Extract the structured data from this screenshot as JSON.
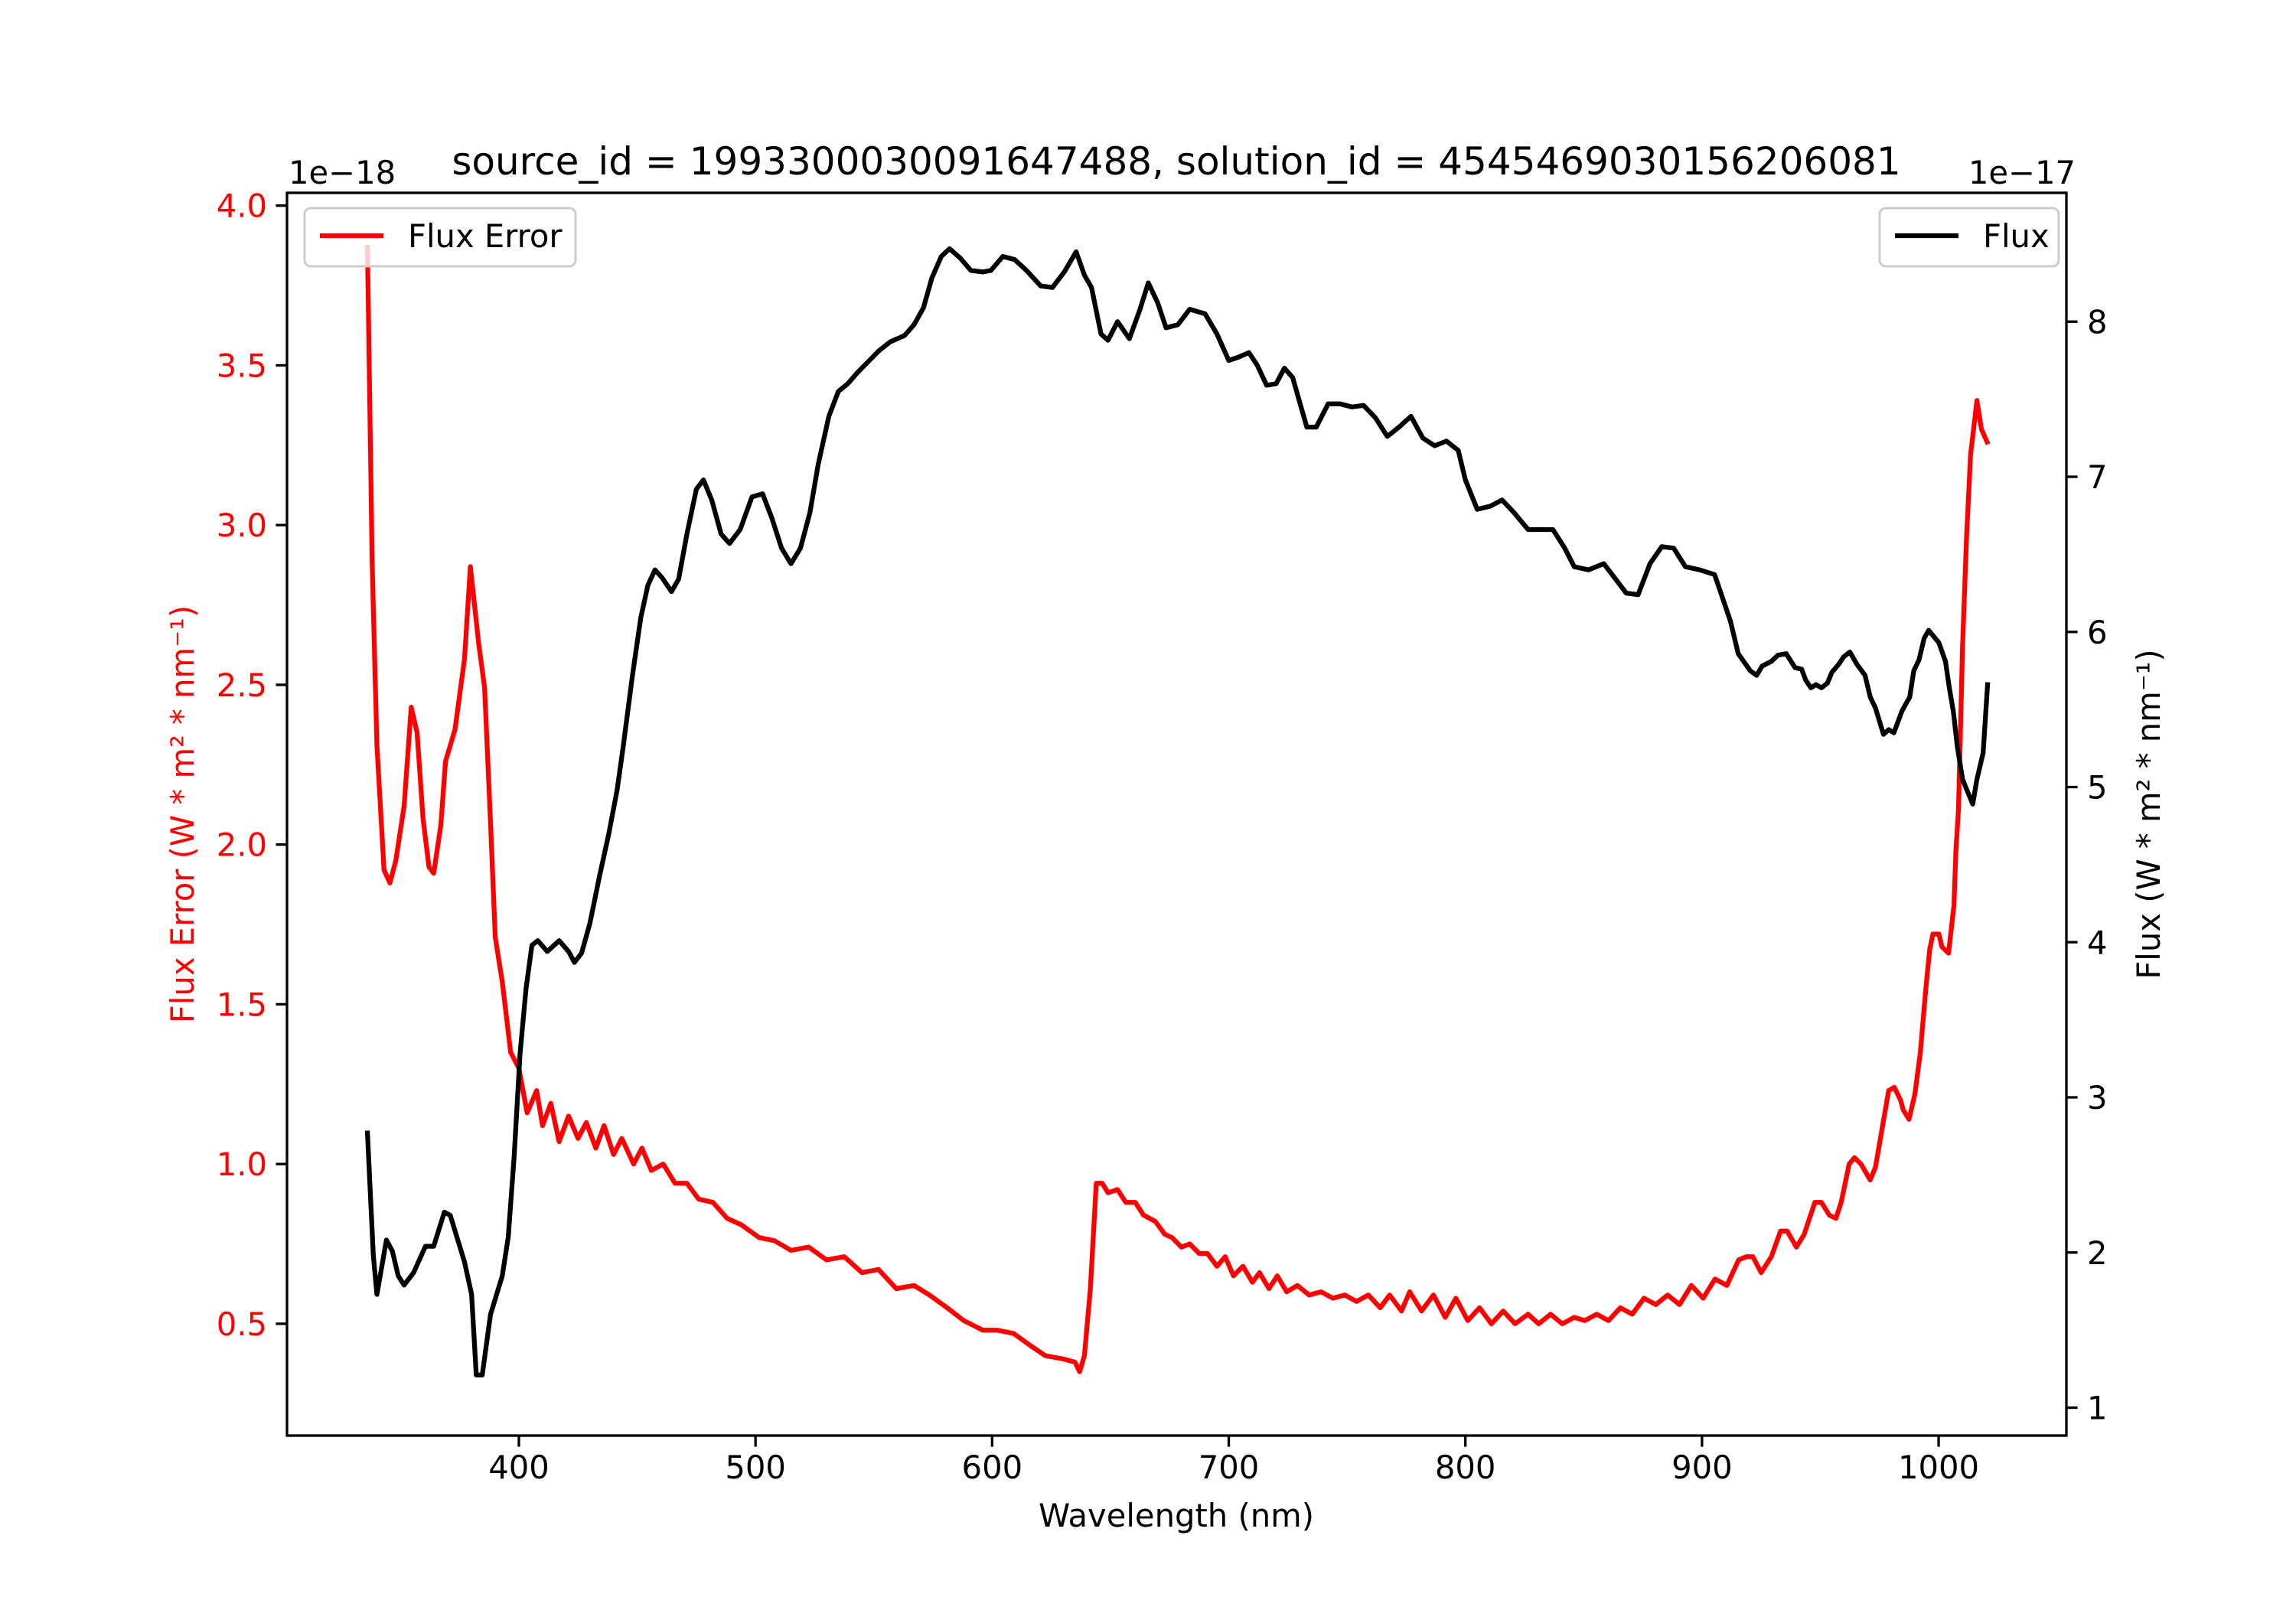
{
  "chart_data": {
    "type": "line",
    "title": "source_id = 1993300030091647488, solution_id = 4545469030156206081",
    "xlabel": "Wavelength (nm)",
    "ylabel_left": "Flux Error (W * m² * nm⁻¹)",
    "ylabel_right": "Flux (W * m² * nm⁻¹)",
    "offset_left": "1e−18",
    "offset_right": "1e−17",
    "xlim": [
      302,
      1054
    ],
    "ylim_left": [
      0.15,
      4.04
    ],
    "ylim_right": [
      0.82,
      8.83
    ],
    "x_ticks": [
      400,
      500,
      600,
      700,
      800,
      900,
      1000
    ],
    "x_tick_labels": [
      "400",
      "500",
      "600",
      "700",
      "800",
      "900",
      "1000"
    ],
    "y_left_ticks": [
      0.5,
      1.0,
      1.5,
      2.0,
      2.5,
      3.0,
      3.5,
      4.0
    ],
    "y_left_tick_labels": [
      "0.5",
      "1.0",
      "1.5",
      "2.0",
      "2.5",
      "3.0",
      "3.5",
      "4.0"
    ],
    "y_right_ticks": [
      1,
      2,
      3,
      4,
      5,
      6,
      7,
      8
    ],
    "y_right_tick_labels": [
      "1",
      "2",
      "3",
      "4",
      "5",
      "6",
      "7",
      "8"
    ],
    "grid": false,
    "colors": {
      "flux_error": "#ff0000",
      "flux": "#000000"
    },
    "legend": [
      {
        "name": "Flux Error",
        "placement": "upper-left",
        "color": "#ff0000"
      },
      {
        "name": "Flux",
        "placement": "upper-right",
        "color": "#000000"
      }
    ],
    "series": [
      {
        "name": "Flux Error",
        "axis": "left",
        "color": "#ff0000",
        "x": [
          336,
          338,
          340,
          343,
          345.5,
          348,
          351.5,
          354.5,
          357,
          359.5,
          362,
          364,
          367,
          369,
          373,
          377,
          379.5,
          383,
          385.5,
          388,
          390,
          393,
          396.5,
          400,
          403.5,
          407.5,
          410,
          413.5,
          417,
          421,
          425,
          428.5,
          432.5,
          436,
          440,
          443.5,
          448.5,
          452,
          456,
          461,
          466,
          471,
          476,
          482,
          488,
          494,
          501.5,
          508,
          515,
          522.5,
          530,
          537.5,
          545,
          552,
          559.5,
          567,
          573.5,
          581,
          588,
          596,
          602,
          609,
          616.5,
          622.5,
          630,
          635,
          637,
          639,
          641.5,
          644,
          646.5,
          649,
          653,
          656.5,
          660.5,
          664,
          669,
          673,
          676,
          680,
          683.5,
          687.5,
          691,
          695,
          698.5,
          702,
          706,
          710,
          713,
          717,
          720.5,
          724.5,
          729,
          734,
          739,
          744,
          749,
          754,
          759,
          764,
          768,
          773,
          776.5,
          781.5,
          786.5,
          791.5,
          796,
          801,
          806,
          811,
          816,
          821,
          826.5,
          831,
          836,
          841,
          846,
          850.5,
          855.5,
          860.5,
          865.5,
          870.5,
          875.5,
          880.5,
          885.5,
          890.5,
          895.5,
          900.5,
          905.5,
          910.5,
          915.5,
          918.7,
          921.5,
          925,
          929.3,
          933.2,
          936,
          939.9,
          943.2,
          947.7,
          950.5,
          953.8,
          956.6,
          958.8,
          962.2,
          964.4,
          967.2,
          971.1,
          973.3,
          978.9,
          981.3,
          983.9,
          985,
          987.5,
          990,
          992.3,
          994.5,
          996.2,
          997.6,
          1000.1,
          1001.4,
          1004.2,
          1006.5,
          1007.3,
          1008.4,
          1010.1,
          1011.8,
          1013.5,
          1016.2,
          1018.1,
          1020.5
        ],
        "y": [
          3.87,
          2.88,
          2.31,
          1.92,
          1.88,
          1.95,
          2.12,
          2.43,
          2.35,
          2.08,
          1.93,
          1.91,
          2.06,
          2.26,
          2.36,
          2.58,
          2.87,
          2.63,
          2.49,
          2.07,
          1.71,
          1.57,
          1.35,
          1.3,
          1.16,
          1.23,
          1.12,
          1.19,
          1.07,
          1.15,
          1.08,
          1.13,
          1.05,
          1.12,
          1.03,
          1.08,
          1.0,
          1.05,
          0.98,
          1.0,
          0.94,
          0.94,
          0.89,
          0.88,
          0.83,
          0.81,
          0.77,
          0.76,
          0.73,
          0.74,
          0.7,
          0.71,
          0.66,
          0.67,
          0.61,
          0.62,
          0.59,
          0.55,
          0.51,
          0.48,
          0.48,
          0.47,
          0.43,
          0.4,
          0.39,
          0.38,
          0.35,
          0.4,
          0.61,
          0.94,
          0.94,
          0.91,
          0.92,
          0.88,
          0.88,
          0.84,
          0.82,
          0.78,
          0.77,
          0.74,
          0.75,
          0.72,
          0.72,
          0.68,
          0.71,
          0.65,
          0.68,
          0.63,
          0.66,
          0.61,
          0.65,
          0.6,
          0.62,
          0.59,
          0.6,
          0.58,
          0.59,
          0.57,
          0.59,
          0.55,
          0.59,
          0.54,
          0.6,
          0.54,
          0.59,
          0.52,
          0.58,
          0.51,
          0.55,
          0.5,
          0.54,
          0.5,
          0.53,
          0.5,
          0.53,
          0.5,
          0.52,
          0.51,
          0.53,
          0.51,
          0.55,
          0.53,
          0.58,
          0.56,
          0.59,
          0.56,
          0.62,
          0.58,
          0.64,
          0.62,
          0.7,
          0.71,
          0.71,
          0.66,
          0.71,
          0.79,
          0.79,
          0.74,
          0.78,
          0.88,
          0.88,
          0.84,
          0.83,
          0.88,
          1.0,
          1.02,
          1.0,
          0.95,
          0.99,
          1.23,
          1.24,
          1.2,
          1.17,
          1.14,
          1.22,
          1.35,
          1.54,
          1.67,
          1.72,
          1.72,
          1.68,
          1.66,
          1.81,
          1.98,
          2.11,
          2.62,
          2.96,
          3.22,
          3.39,
          3.3,
          3.26
        ]
      },
      {
        "name": "Flux",
        "axis": "right",
        "color": "#000000",
        "x": [
          336,
          338.5,
          340,
          344,
          346.5,
          349,
          351.5,
          355.5,
          360.5,
          364,
          368.5,
          371,
          377,
          380,
          382,
          384.5,
          388,
          393,
          395.5,
          398,
          400.5,
          403,
          405.5,
          408,
          412,
          417,
          421,
          423.5,
          426.5,
          430,
          434,
          438,
          441.5,
          444,
          448,
          451.5,
          454.5,
          457.5,
          460.5,
          464.5,
          467.5,
          471,
          475,
          478,
          481.5,
          485.5,
          489,
          493.5,
          498.5,
          503,
          507,
          511,
          515,
          519,
          523,
          526.5,
          531,
          535,
          539,
          543,
          547.5,
          552,
          557,
          563,
          567,
          571,
          574.5,
          578.5,
          582,
          586.5,
          591,
          596,
          599.5,
          604.5,
          609.5,
          614.5,
          620.5,
          625.5,
          630.5,
          635.5,
          639,
          642,
          646,
          649,
          653,
          658,
          662.5,
          666,
          670,
          673.5,
          678.5,
          683.5,
          690,
          695,
          700,
          704,
          708.5,
          712,
          716,
          720,
          723.5,
          727,
          733,
          737,
          742,
          747,
          752,
          757,
          762,
          767,
          772,
          777,
          782,
          787,
          792,
          797,
          800,
          805,
          810.5,
          815.5,
          820.5,
          826.5,
          831,
          837,
          842,
          846,
          852,
          858.5,
          863,
          868,
          873,
          878,
          883,
          888,
          893,
          899,
          905.3,
          912,
          915.3,
          917.6,
          920.4,
          923.1,
          925.4,
          929.3,
          932.1,
          935.6,
          939.3,
          942.1,
          943.8,
          946,
          948.2,
          950.5,
          953,
          954.9,
          957.7,
          959.9,
          962.5,
          965.5,
          968.9,
          971.1,
          973.3,
          976.7,
          978.9,
          981.1,
          984.5,
          987.8,
          989.5,
          991.7,
          993.9,
          995.8,
          1000.1,
          1002.9,
          1004.5,
          1006.2,
          1007.9,
          1010.1,
          1014.4,
          1016.2,
          1018.8,
          1020.7
        ],
        "y": [
          2.77,
          1.98,
          1.73,
          2.08,
          2.01,
          1.85,
          1.79,
          1.87,
          2.04,
          2.04,
          2.26,
          2.24,
          1.94,
          1.73,
          1.21,
          1.21,
          1.6,
          1.85,
          2.1,
          2.62,
          3.28,
          3.7,
          3.98,
          4.01,
          3.94,
          4.01,
          3.94,
          3.87,
          3.93,
          4.12,
          4.42,
          4.7,
          4.98,
          5.25,
          5.72,
          6.09,
          6.3,
          6.4,
          6.35,
          6.26,
          6.34,
          6.63,
          6.92,
          6.98,
          6.85,
          6.63,
          6.57,
          6.66,
          6.87,
          6.89,
          6.73,
          6.54,
          6.44,
          6.54,
          6.77,
          7.08,
          7.39,
          7.55,
          7.6,
          7.67,
          7.74,
          7.81,
          7.87,
          7.91,
          7.98,
          8.09,
          8.28,
          8.42,
          8.47,
          8.41,
          8.33,
          8.32,
          8.33,
          8.42,
          8.4,
          8.33,
          8.23,
          8.22,
          8.32,
          8.45,
          8.3,
          8.22,
          7.92,
          7.88,
          8.0,
          7.89,
          8.08,
          8.25,
          8.12,
          7.96,
          7.98,
          8.08,
          8.05,
          7.92,
          7.75,
          7.77,
          7.8,
          7.72,
          7.59,
          7.6,
          7.7,
          7.64,
          7.32,
          7.32,
          7.47,
          7.47,
          7.45,
          7.46,
          7.38,
          7.26,
          7.32,
          7.39,
          7.25,
          7.2,
          7.23,
          7.17,
          6.98,
          6.79,
          6.81,
          6.85,
          6.77,
          6.66,
          6.66,
          6.66,
          6.54,
          6.42,
          6.4,
          6.44,
          6.35,
          6.25,
          6.24,
          6.44,
          6.55,
          6.54,
          6.42,
          6.4,
          6.37,
          6.07,
          5.86,
          5.81,
          5.75,
          5.72,
          5.78,
          5.81,
          5.85,
          5.86,
          5.77,
          5.76,
          5.69,
          5.64,
          5.66,
          5.64,
          5.67,
          5.74,
          5.79,
          5.84,
          5.87,
          5.79,
          5.72,
          5.58,
          5.51,
          5.34,
          5.37,
          5.35,
          5.49,
          5.58,
          5.75,
          5.82,
          5.96,
          6.01,
          5.93,
          5.81,
          5.64,
          5.49,
          5.26,
          5.05,
          4.89,
          5.05,
          5.22,
          5.66
        ]
      }
    ]
  }
}
